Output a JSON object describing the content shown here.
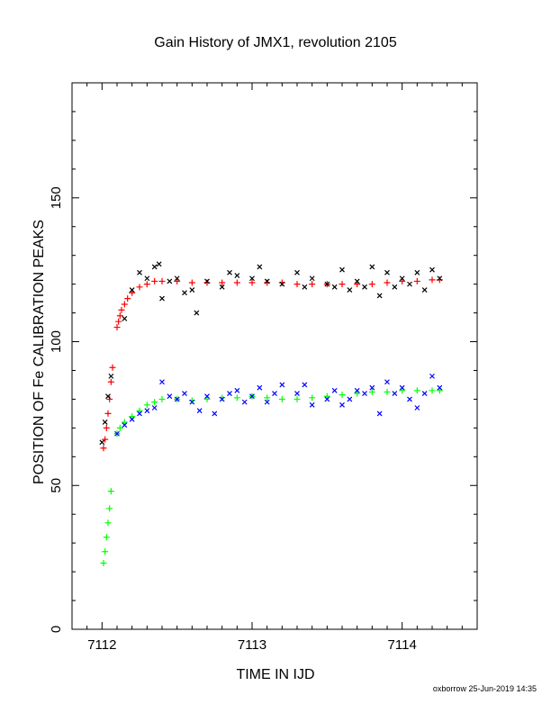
{
  "chart_data": {
    "type": "scatter",
    "title": "Gain History of JMX1, revolution 2105",
    "xlabel": "TIME IN IJD",
    "ylabel": "POSITION OF Fe CALIBRATION PEAKS",
    "xlim": [
      7111.8,
      7114.5
    ],
    "ylim": [
      0,
      190
    ],
    "xticks": [
      "7112",
      "7113",
      "7114"
    ],
    "yticks": [
      "0",
      "50",
      "100",
      "150"
    ],
    "grid": false,
    "legend": "none",
    "series": [
      {
        "color": "#ff0000",
        "marker": "plus",
        "x": [
          7112.01,
          7112.02,
          7112.03,
          7112.04,
          7112.05,
          7112.06,
          7112.07,
          7112.1,
          7112.11,
          7112.12,
          7112.13,
          7112.15,
          7112.17,
          7112.2,
          7112.25,
          7112.3,
          7112.35,
          7112.4,
          7112.5,
          7112.6,
          7112.7,
          7112.8,
          7112.9,
          7113.0,
          7113.1,
          7113.2,
          7113.3,
          7113.4,
          7113.5,
          7113.6,
          7113.7,
          7113.8,
          7113.9,
          7114.0,
          7114.1,
          7114.2,
          7114.25
        ],
        "y": [
          63,
          66,
          70,
          75,
          80,
          86,
          91,
          105,
          107,
          109,
          111,
          113,
          115,
          117,
          119,
          120,
          121,
          121,
          121,
          120.5,
          120.5,
          120.5,
          120.5,
          120.5,
          120.5,
          120.5,
          120,
          120,
          120,
          120,
          120,
          120,
          120.5,
          121,
          121,
          121.5,
          121.5
        ]
      },
      {
        "color": "#00ff00",
        "marker": "plus",
        "x": [
          7112.01,
          7112.02,
          7112.03,
          7112.04,
          7112.05,
          7112.06,
          7112.1,
          7112.12,
          7112.15,
          7112.2,
          7112.25,
          7112.3,
          7112.35,
          7112.4,
          7112.5,
          7112.6,
          7112.7,
          7112.8,
          7112.9,
          7113.0,
          7113.1,
          7113.2,
          7113.3,
          7113.4,
          7113.5,
          7113.6,
          7113.7,
          7113.8,
          7113.9,
          7114.0,
          7114.1,
          7114.2,
          7114.25
        ],
        "y": [
          23,
          27,
          32,
          37,
          42,
          48,
          68,
          70,
          72,
          74,
          76,
          78,
          79,
          80,
          80,
          79.5,
          80,
          80.5,
          80.5,
          81,
          80.5,
          80,
          80,
          80.5,
          81,
          81.5,
          82,
          82.5,
          82.5,
          83,
          83,
          83,
          83
        ]
      },
      {
        "color": "#000000",
        "marker": "cross",
        "x": [
          7112.0,
          7112.02,
          7112.04,
          7112.06,
          7112.15,
          7112.2,
          7112.25,
          7112.3,
          7112.35,
          7112.38,
          7112.4,
          7112.45,
          7112.5,
          7112.55,
          7112.6,
          7112.63,
          7112.7,
          7112.8,
          7112.85,
          7112.9,
          7113.0,
          7113.05,
          7113.1,
          7113.2,
          7113.3,
          7113.35,
          7113.4,
          7113.5,
          7113.55,
          7113.6,
          7113.65,
          7113.7,
          7113.75,
          7113.8,
          7113.85,
          7113.9,
          7113.95,
          7114.0,
          7114.05,
          7114.1,
          7114.15,
          7114.2,
          7114.25
        ],
        "y": [
          65,
          72,
          81,
          88,
          108,
          118,
          124,
          122,
          126,
          127,
          115,
          121,
          122,
          117,
          118,
          110,
          121,
          119,
          124,
          123,
          122,
          126,
          121,
          120,
          124,
          119,
          122,
          120,
          119,
          125,
          118,
          121,
          119,
          126,
          116,
          124,
          119,
          122,
          120,
          124,
          118,
          125,
          122
        ]
      },
      {
        "color": "#0000ff",
        "marker": "cross",
        "x": [
          7112.1,
          7112.15,
          7112.2,
          7112.25,
          7112.3,
          7112.35,
          7112.4,
          7112.45,
          7112.5,
          7112.55,
          7112.6,
          7112.65,
          7112.7,
          7112.75,
          7112.8,
          7112.85,
          7112.9,
          7112.95,
          7113.0,
          7113.05,
          7113.1,
          7113.15,
          7113.2,
          7113.3,
          7113.35,
          7113.4,
          7113.5,
          7113.55,
          7113.6,
          7113.65,
          7113.7,
          7113.75,
          7113.8,
          7113.85,
          7113.9,
          7113.95,
          7114.0,
          7114.05,
          7114.1,
          7114.15,
          7114.2,
          7114.25
        ],
        "y": [
          68,
          71,
          73,
          75,
          76,
          77,
          86,
          81,
          80,
          82,
          79,
          76,
          81,
          75,
          80,
          82,
          83,
          79,
          81,
          84,
          79,
          82,
          85,
          82,
          85,
          78,
          80,
          83,
          78,
          80,
          83,
          82,
          84,
          75,
          86,
          82,
          84,
          80,
          77,
          82,
          88,
          84
        ]
      }
    ]
  },
  "footer": "oxborrow 25-Jun-2019 14:35"
}
